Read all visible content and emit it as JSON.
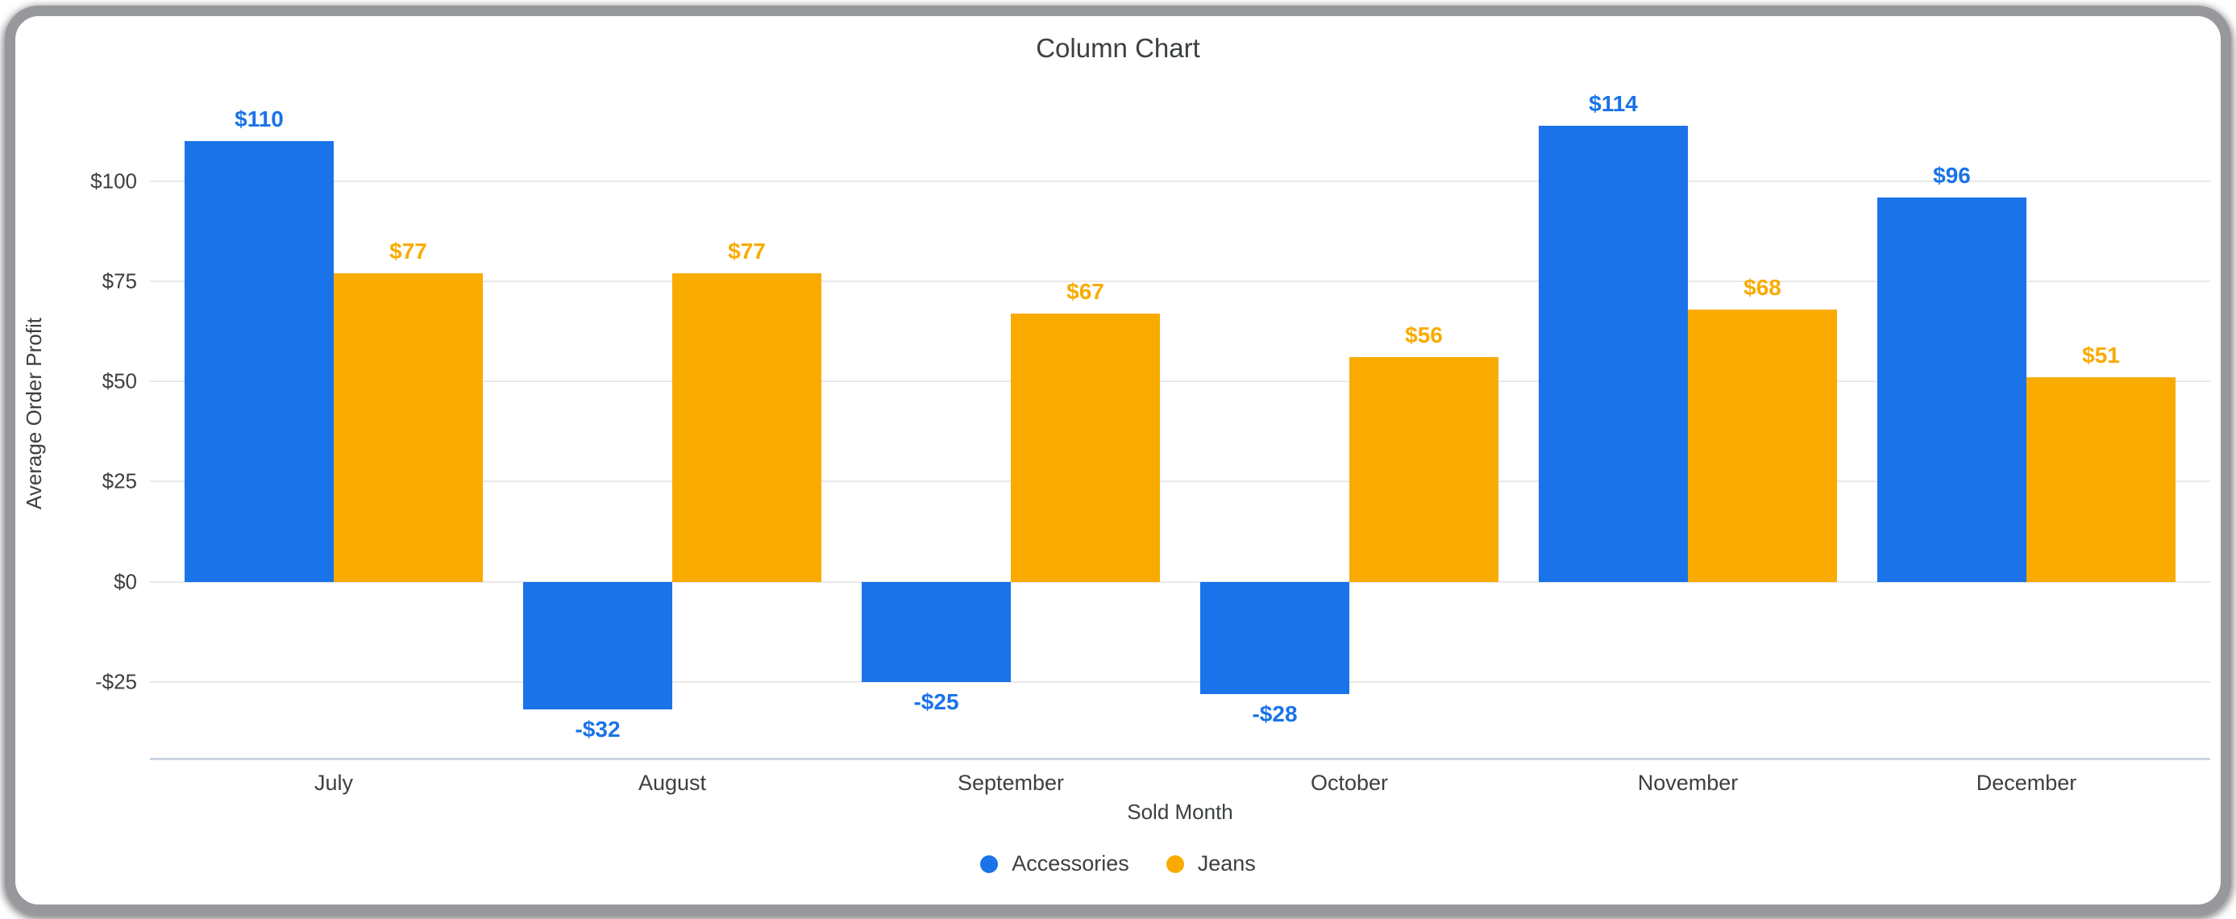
{
  "chart_data": {
    "type": "bar",
    "title": "Column Chart",
    "xlabel": "Sold Month",
    "ylabel": "Average Order Profit",
    "categories": [
      "July",
      "August",
      "September",
      "October",
      "November",
      "December"
    ],
    "series": [
      {
        "name": "Accessories",
        "color": "#1a73e8",
        "values": [
          110,
          -32,
          -25,
          -28,
          114,
          96
        ],
        "data_labels": [
          "$110",
          "-$32",
          "-$25",
          "-$28",
          "$114",
          "$96"
        ]
      },
      {
        "name": "Jeans",
        "color": "#f9ab00",
        "values": [
          77,
          77,
          67,
          56,
          68,
          51
        ],
        "data_labels": [
          "$77",
          "$77",
          "$67",
          "$56",
          "$68",
          "$51"
        ]
      }
    ],
    "y_ticks": [
      {
        "value": 100,
        "label": "$100"
      },
      {
        "value": 75,
        "label": "$75"
      },
      {
        "value": 50,
        "label": "$50"
      },
      {
        "value": 25,
        "label": "$25"
      },
      {
        "value": 0,
        "label": "$0"
      },
      {
        "value": -25,
        "label": "-$25"
      }
    ],
    "ylim": [
      -44,
      128
    ],
    "grid": true,
    "legend_position": "bottom",
    "colors": {
      "text": "#3c4043",
      "gridline": "#e8e8e8",
      "axis_line": "#ccd3e2",
      "window_border": "#97989b",
      "background": "#ffffff"
    }
  }
}
